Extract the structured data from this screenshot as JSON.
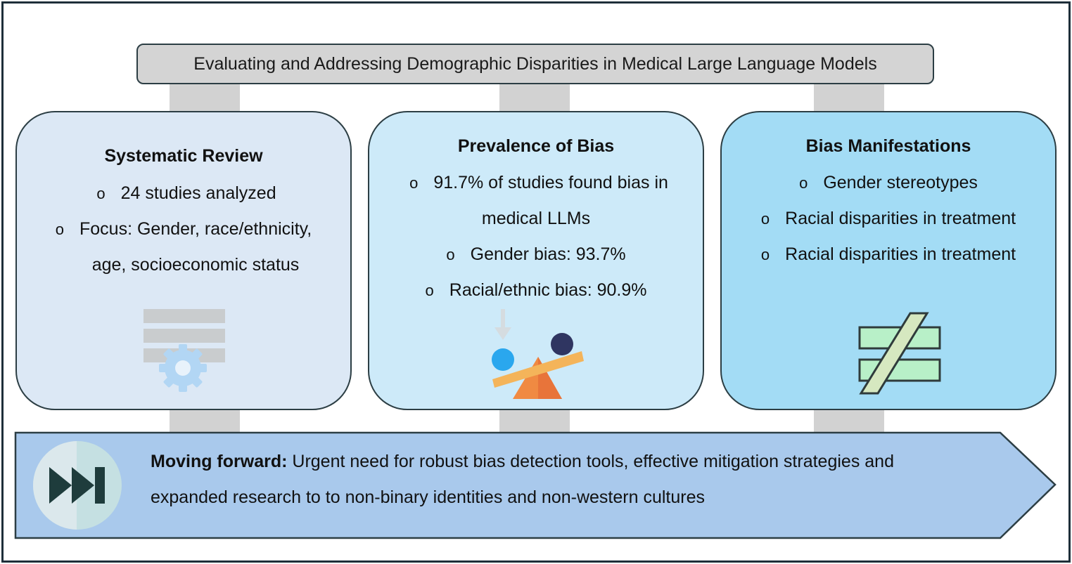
{
  "title": "Evaluating and Addressing Demographic Disparities in Medical Large Language Models",
  "cards": [
    {
      "heading": "Systematic Review",
      "bullets": [
        {
          "symbol": "o",
          "text": "24 studies analyzed"
        },
        {
          "symbol": "o",
          "text": "Focus: Gender, race/ethnicity,"
        },
        {
          "symbol": "",
          "text": "age, socioeconomic status"
        }
      ],
      "icon": "document-gear-icon",
      "color": "#dce8f5"
    },
    {
      "heading": "Prevalence of Bias",
      "bullets": [
        {
          "symbol": "o",
          "text": "91.7% of studies found bias in"
        },
        {
          "symbol": "",
          "text": "medical LLMs"
        },
        {
          "symbol": "o",
          "text": "Gender bias: 93.7%"
        },
        {
          "symbol": "o",
          "text": "Racial/ethnic bias: 90.9%"
        }
      ],
      "icon": "seesaw-balance-icon",
      "color": "#cdeaf9"
    },
    {
      "heading": "Bias Manifestations",
      "bullets": [
        {
          "symbol": "o",
          "text": "Gender stereotypes"
        },
        {
          "symbol": "o",
          "text": "Racial disparities in treatment"
        },
        {
          "symbol": "o",
          "text": "Racial disparities in treatment"
        }
      ],
      "icon": "not-equal-icon",
      "color": "#a3dcf5"
    }
  ],
  "footer": {
    "lead": "Moving forward:",
    "line1": " Urgent need for robust bias detection tools, effective mitigation strategies and",
    "line2": "expanded research to to non-binary identities and non-western cultures",
    "icon": "fast-forward-icon",
    "color": "#a9c9ec"
  }
}
